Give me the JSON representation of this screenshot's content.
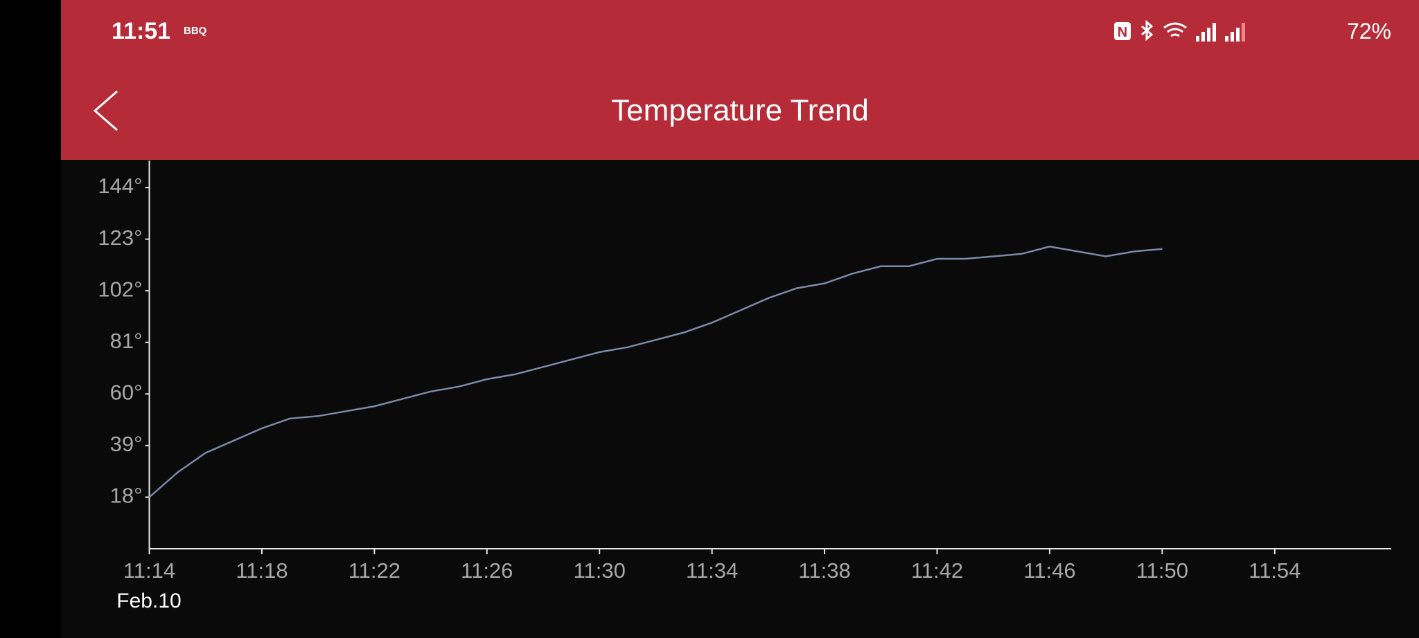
{
  "status_bar": {
    "time": "11:51",
    "app": "BBQ",
    "battery": "72%"
  },
  "header": {
    "title": "Temperature Trend"
  },
  "chart_data": {
    "type": "line",
    "date_label": "Feb.10",
    "color": "#7b8aa8",
    "x": [
      "11:14",
      "11:15",
      "11:16",
      "11:17",
      "11:18",
      "11:19",
      "11:20",
      "11:21",
      "11:22",
      "11:23",
      "11:24",
      "11:25",
      "11:26",
      "11:27",
      "11:28",
      "11:29",
      "11:30",
      "11:31",
      "11:32",
      "11:33",
      "11:34",
      "11:35",
      "11:36",
      "11:37",
      "11:38",
      "11:39",
      "11:40",
      "11:41",
      "11:42",
      "11:43",
      "11:44",
      "11:45",
      "11:46",
      "11:47",
      "11:48",
      "11:49",
      "11:50"
    ],
    "values": [
      18,
      28,
      36,
      41,
      46,
      50,
      51,
      53,
      55,
      58,
      61,
      63,
      66,
      68,
      71,
      74,
      77,
      79,
      82,
      85,
      89,
      94,
      99,
      103,
      105,
      109,
      112,
      112,
      115,
      115,
      116,
      117,
      120,
      118,
      116,
      118,
      119
    ],
    "xlim": [
      "11:14",
      "11:56"
    ],
    "xticks": [
      "11:14",
      "11:18",
      "11:22",
      "11:26",
      "11:30",
      "11:34",
      "11:38",
      "11:42",
      "11:46",
      "11:50",
      "11:54"
    ],
    "ylim": [
      -3,
      155
    ],
    "yticks": [
      {
        "value": 18,
        "label": "18°"
      },
      {
        "value": 39,
        "label": "39°"
      },
      {
        "value": 60,
        "label": "60°"
      },
      {
        "value": 81,
        "label": "81°"
      },
      {
        "value": 102,
        "label": "102°"
      },
      {
        "value": 123,
        "label": "123°"
      },
      {
        "value": 144,
        "label": "144°"
      }
    ]
  }
}
